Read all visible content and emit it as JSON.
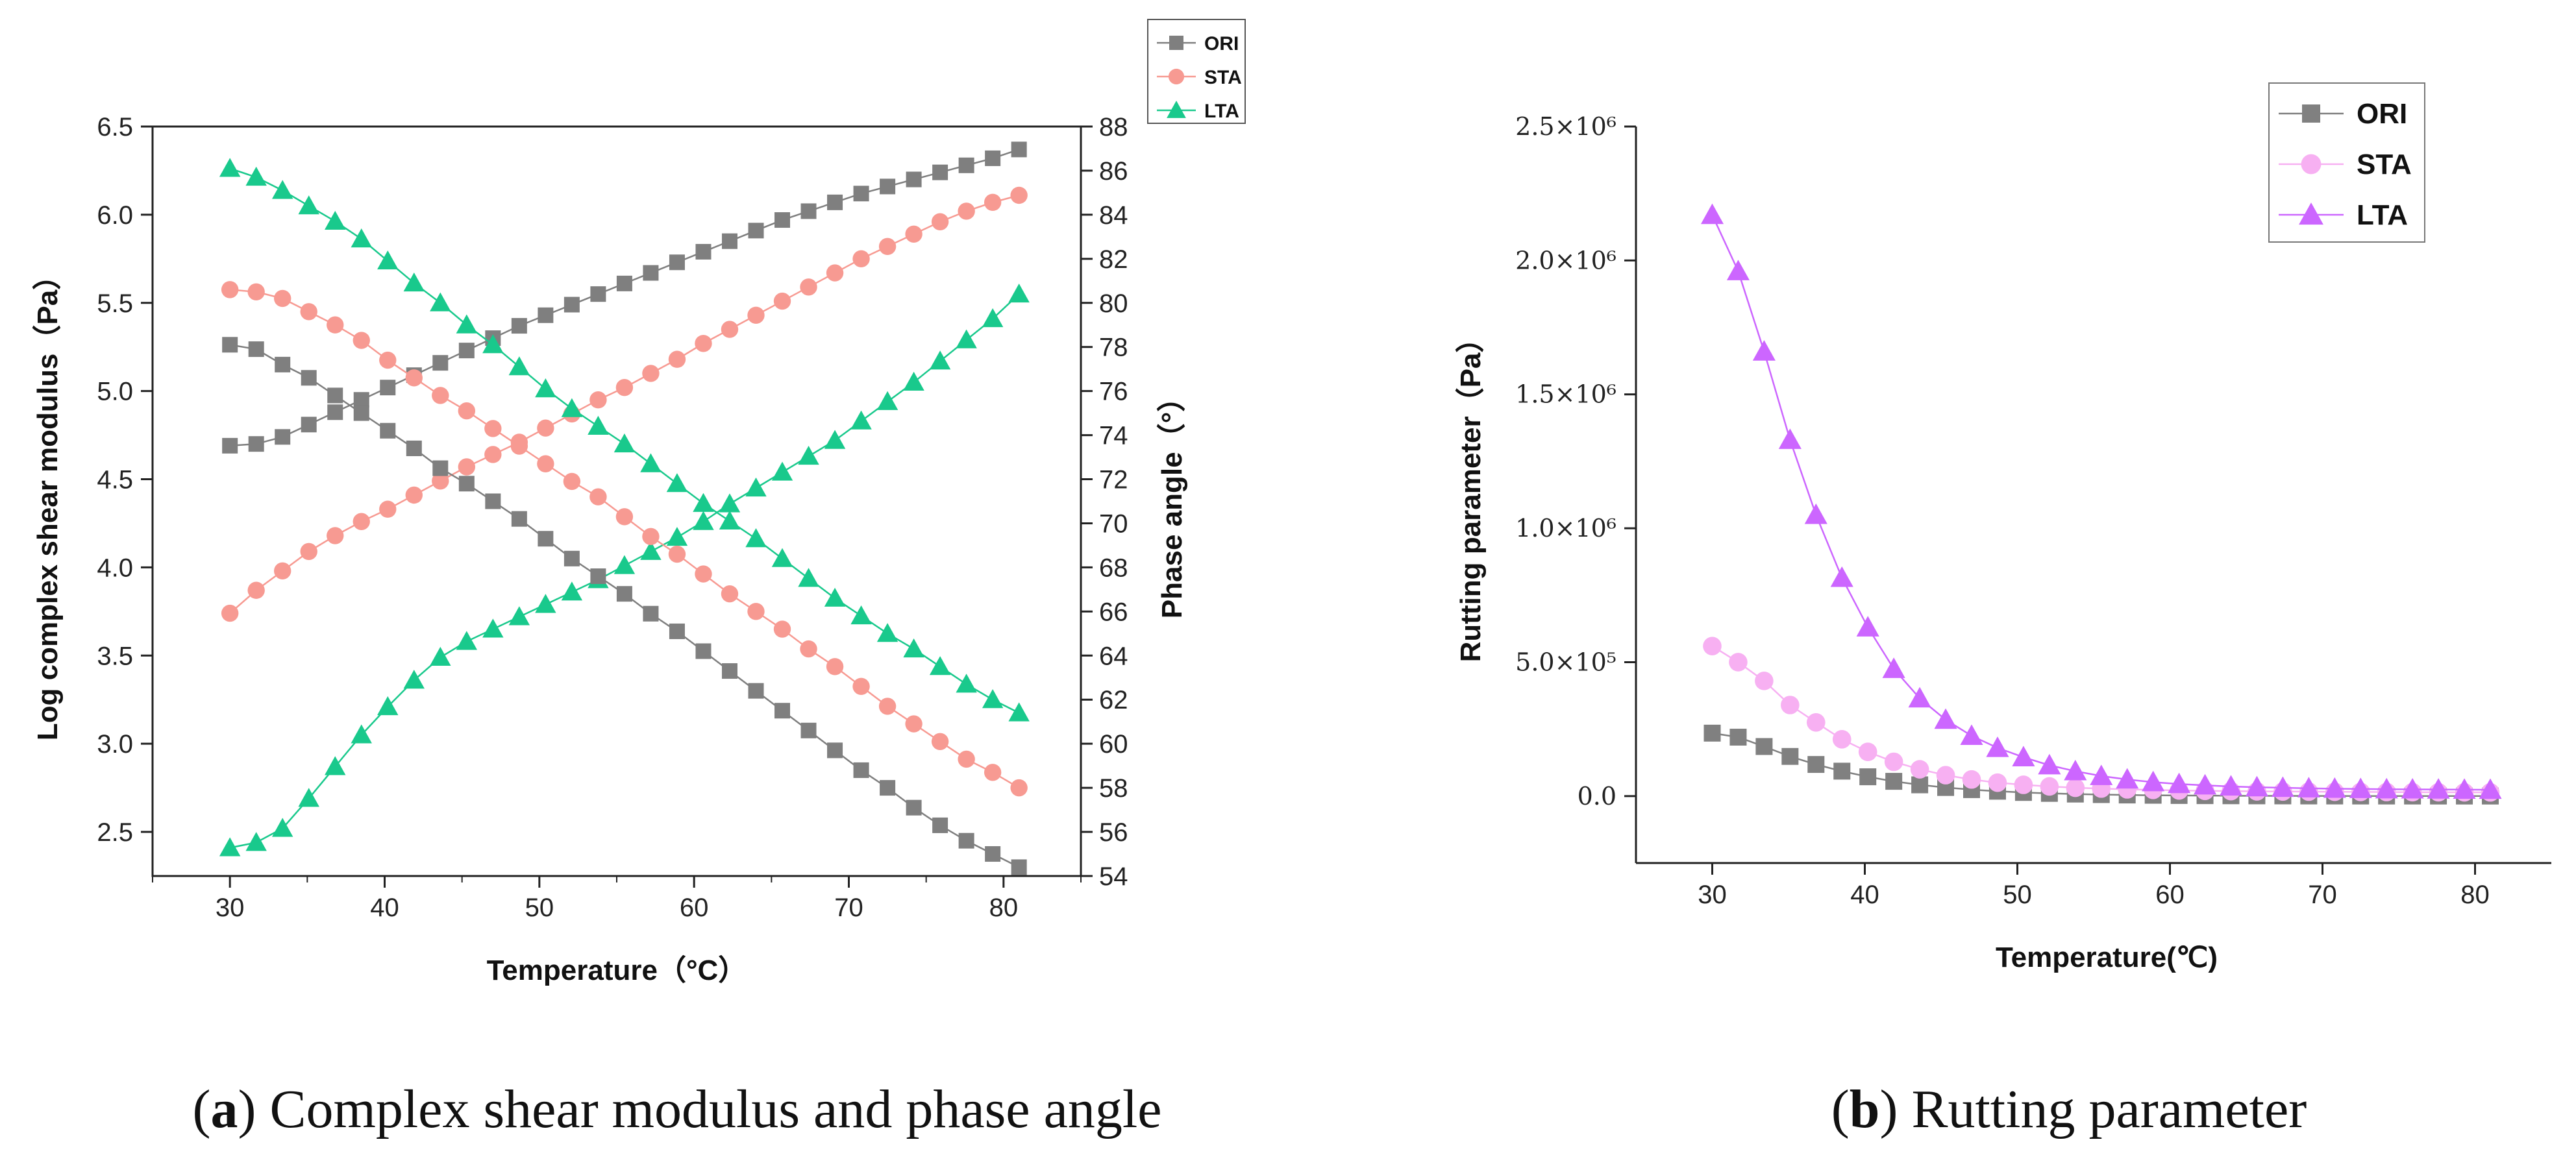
{
  "chart_data": [
    {
      "type": "line",
      "title": "",
      "xlabel": "Temperature（°C）",
      "ylabel": "Log complex shear modulus（Pa）",
      "y2label": "Phase angle（°）",
      "xlim": [
        25,
        85
      ],
      "ylim": [
        2.25,
        6.5
      ],
      "y2lim": [
        54,
        88
      ],
      "xticks": [
        "30",
        "40",
        "50",
        "60",
        "70",
        "80"
      ],
      "yticks": [
        "2.5",
        "3.0",
        "3.5",
        "4.0",
        "4.5",
        "5.0",
        "5.5",
        "6.0",
        "6.5"
      ],
      "y2ticks": [
        "54",
        "56",
        "58",
        "60",
        "62",
        "64",
        "66",
        "68",
        "70",
        "72",
        "74",
        "76",
        "78",
        "80",
        "82",
        "84",
        "86",
        "88"
      ],
      "legend_position": "top-right-outside",
      "x": [
        30,
        31.7,
        33.4,
        35.1,
        36.8,
        38.5,
        40.2,
        41.9,
        43.6,
        45.3,
        47,
        48.7,
        50.4,
        52.1,
        53.8,
        55.5,
        57.2,
        58.9,
        60.6,
        62.3,
        64,
        65.7,
        67.4,
        69.1,
        70.8,
        72.5,
        74.2,
        75.9,
        77.6,
        79.3,
        81
      ],
      "series": [
        {
          "name": "ORI",
          "metric": "complex_modulus",
          "axis": "left",
          "color": "#7f7f7f",
          "marker": "square",
          "values": [
            4.69,
            4.7,
            4.74,
            4.81,
            4.88,
            4.95,
            5.02,
            5.09,
            5.16,
            5.23,
            5.3,
            5.37,
            5.43,
            5.49,
            5.55,
            5.61,
            5.67,
            5.73,
            5.79,
            5.85,
            5.91,
            5.97,
            6.02,
            6.07,
            6.12,
            6.16,
            6.2,
            6.24,
            6.28,
            6.32,
            6.37
          ]
        },
        {
          "name": "STA",
          "metric": "complex_modulus",
          "axis": "left",
          "color": "#f79a92",
          "marker": "circle",
          "values": [
            3.74,
            3.87,
            3.98,
            4.09,
            4.18,
            4.26,
            4.33,
            4.41,
            4.49,
            4.57,
            4.64,
            4.71,
            4.79,
            4.87,
            4.95,
            5.02,
            5.1,
            5.18,
            5.27,
            5.35,
            5.43,
            5.51,
            5.59,
            5.67,
            5.75,
            5.82,
            5.89,
            5.96,
            6.02,
            6.07,
            6.11
          ]
        },
        {
          "name": "LTA",
          "metric": "complex_modulus",
          "axis": "left",
          "color": "#19c98c",
          "marker": "triangle",
          "values": [
            2.41,
            2.44,
            2.52,
            2.69,
            2.87,
            3.05,
            3.21,
            3.36,
            3.49,
            3.58,
            3.65,
            3.72,
            3.79,
            3.86,
            3.93,
            4.01,
            4.09,
            4.17,
            4.26,
            4.36,
            4.45,
            4.54,
            4.63,
            4.72,
            4.83,
            4.94,
            5.05,
            5.17,
            5.29,
            5.41,
            5.55
          ]
        },
        {
          "name": "ORI",
          "metric": "phase_angle",
          "axis": "right",
          "color": "#7f7f7f",
          "marker": "square",
          "values": [
            78.1,
            77.9,
            77.2,
            76.6,
            75.8,
            75.0,
            74.2,
            73.4,
            72.5,
            71.8,
            71.0,
            70.2,
            69.3,
            68.4,
            67.6,
            66.8,
            65.9,
            65.1,
            64.2,
            63.3,
            62.4,
            61.5,
            60.6,
            59.7,
            58.8,
            58.0,
            57.1,
            56.3,
            55.6,
            55.0,
            54.4
          ]
        },
        {
          "name": "STA",
          "metric": "phase_angle",
          "axis": "right",
          "color": "#f79a92",
          "marker": "circle",
          "values": [
            80.6,
            80.5,
            80.2,
            79.6,
            79.0,
            78.3,
            77.4,
            76.6,
            75.8,
            75.1,
            74.3,
            73.5,
            72.7,
            71.9,
            71.2,
            70.3,
            69.4,
            68.6,
            67.7,
            66.8,
            66.0,
            65.2,
            64.3,
            63.5,
            62.6,
            61.7,
            60.9,
            60.1,
            59.3,
            58.7,
            58.0
          ]
        },
        {
          "name": "LTA",
          "metric": "phase_angle",
          "axis": "right",
          "color": "#19c98c",
          "marker": "triangle",
          "values": [
            86.1,
            85.7,
            85.1,
            84.4,
            83.7,
            82.9,
            81.9,
            80.9,
            80.0,
            79.0,
            78.1,
            77.1,
            76.1,
            75.2,
            74.4,
            73.6,
            72.7,
            71.8,
            70.9,
            70.1,
            69.3,
            68.4,
            67.5,
            66.6,
            65.8,
            65.0,
            64.3,
            63.5,
            62.7,
            62.0,
            61.4
          ]
        }
      ],
      "legend": [
        {
          "label": "ORI",
          "color": "#7f7f7f",
          "marker": "square"
        },
        {
          "label": "STA",
          "color": "#f79a92",
          "marker": "circle"
        },
        {
          "label": "LTA",
          "color": "#19c98c",
          "marker": "triangle"
        }
      ]
    },
    {
      "type": "line",
      "title": "",
      "xlabel": "Temperature(℃)",
      "ylabel": "Rutting parameter（Pa）",
      "xlim": [
        25,
        85
      ],
      "ylim": [
        -250000,
        2500000
      ],
      "xticks": [
        "30",
        "40",
        "50",
        "60",
        "70",
        "80"
      ],
      "ytick_values": [
        0,
        500000,
        1000000,
        1500000,
        2000000,
        2500000
      ],
      "yticks": [
        "0.0",
        "5.0×10⁵",
        "1.0×10⁶",
        "1.5×10⁶",
        "2.0×10⁶",
        "2.5×10⁶"
      ],
      "legend_position": "top-right",
      "x": [
        30,
        31.7,
        33.4,
        35.1,
        36.8,
        38.5,
        40.2,
        41.9,
        43.6,
        45.3,
        47,
        48.7,
        50.4,
        52.1,
        53.8,
        55.5,
        57.2,
        58.9,
        60.6,
        62.3,
        64,
        65.7,
        67.4,
        69.1,
        70.8,
        72.5,
        74.2,
        75.9,
        77.6,
        79.3,
        81
      ],
      "series": [
        {
          "name": "ORI",
          "color": "#808080",
          "marker": "square",
          "values": [
            235000,
            220000,
            185000,
            148000,
            118000,
            93000,
            72000,
            55000,
            42000,
            32000,
            24000,
            18000,
            13500,
            10000,
            7500,
            5500,
            4000,
            3000,
            2200,
            1600,
            1200,
            900,
            700,
            500,
            400,
            300,
            250,
            200,
            150,
            120,
            100
          ]
        },
        {
          "name": "STA",
          "color": "#f7b0f2",
          "marker": "circle",
          "values": [
            560000,
            500000,
            430000,
            340000,
            275000,
            212000,
            165000,
            128000,
            100000,
            78000,
            62000,
            50000,
            42000,
            36000,
            31000,
            28000,
            25000,
            23000,
            21000,
            19500,
            18500,
            17500,
            17000,
            16500,
            16000,
            15500,
            15000,
            14500,
            14200,
            14000,
            13800
          ]
        },
        {
          "name": "LTA",
          "color": "#cc66ff",
          "marker": "triangle",
          "values": [
            2170000,
            1960000,
            1660000,
            1330000,
            1050000,
            815000,
            630000,
            475000,
            365000,
            285000,
            225000,
            180000,
            145000,
            115000,
            93000,
            75000,
            62000,
            52000,
            45000,
            40000,
            36000,
            33000,
            31000,
            29000,
            27500,
            26500,
            25500,
            25000,
            24500,
            24000,
            23500
          ]
        }
      ],
      "legend": [
        {
          "label": "ORI",
          "color": "#808080",
          "marker": "square"
        },
        {
          "label": "STA",
          "color": "#f7b0f2",
          "marker": "circle"
        },
        {
          "label": "LTA",
          "color": "#cc66ff",
          "marker": "triangle"
        }
      ]
    }
  ],
  "captions": {
    "a": {
      "letter": "a",
      "text": "Complex shear modulus and phase angle"
    },
    "b": {
      "letter": "b",
      "text": "Rutting parameter"
    }
  }
}
